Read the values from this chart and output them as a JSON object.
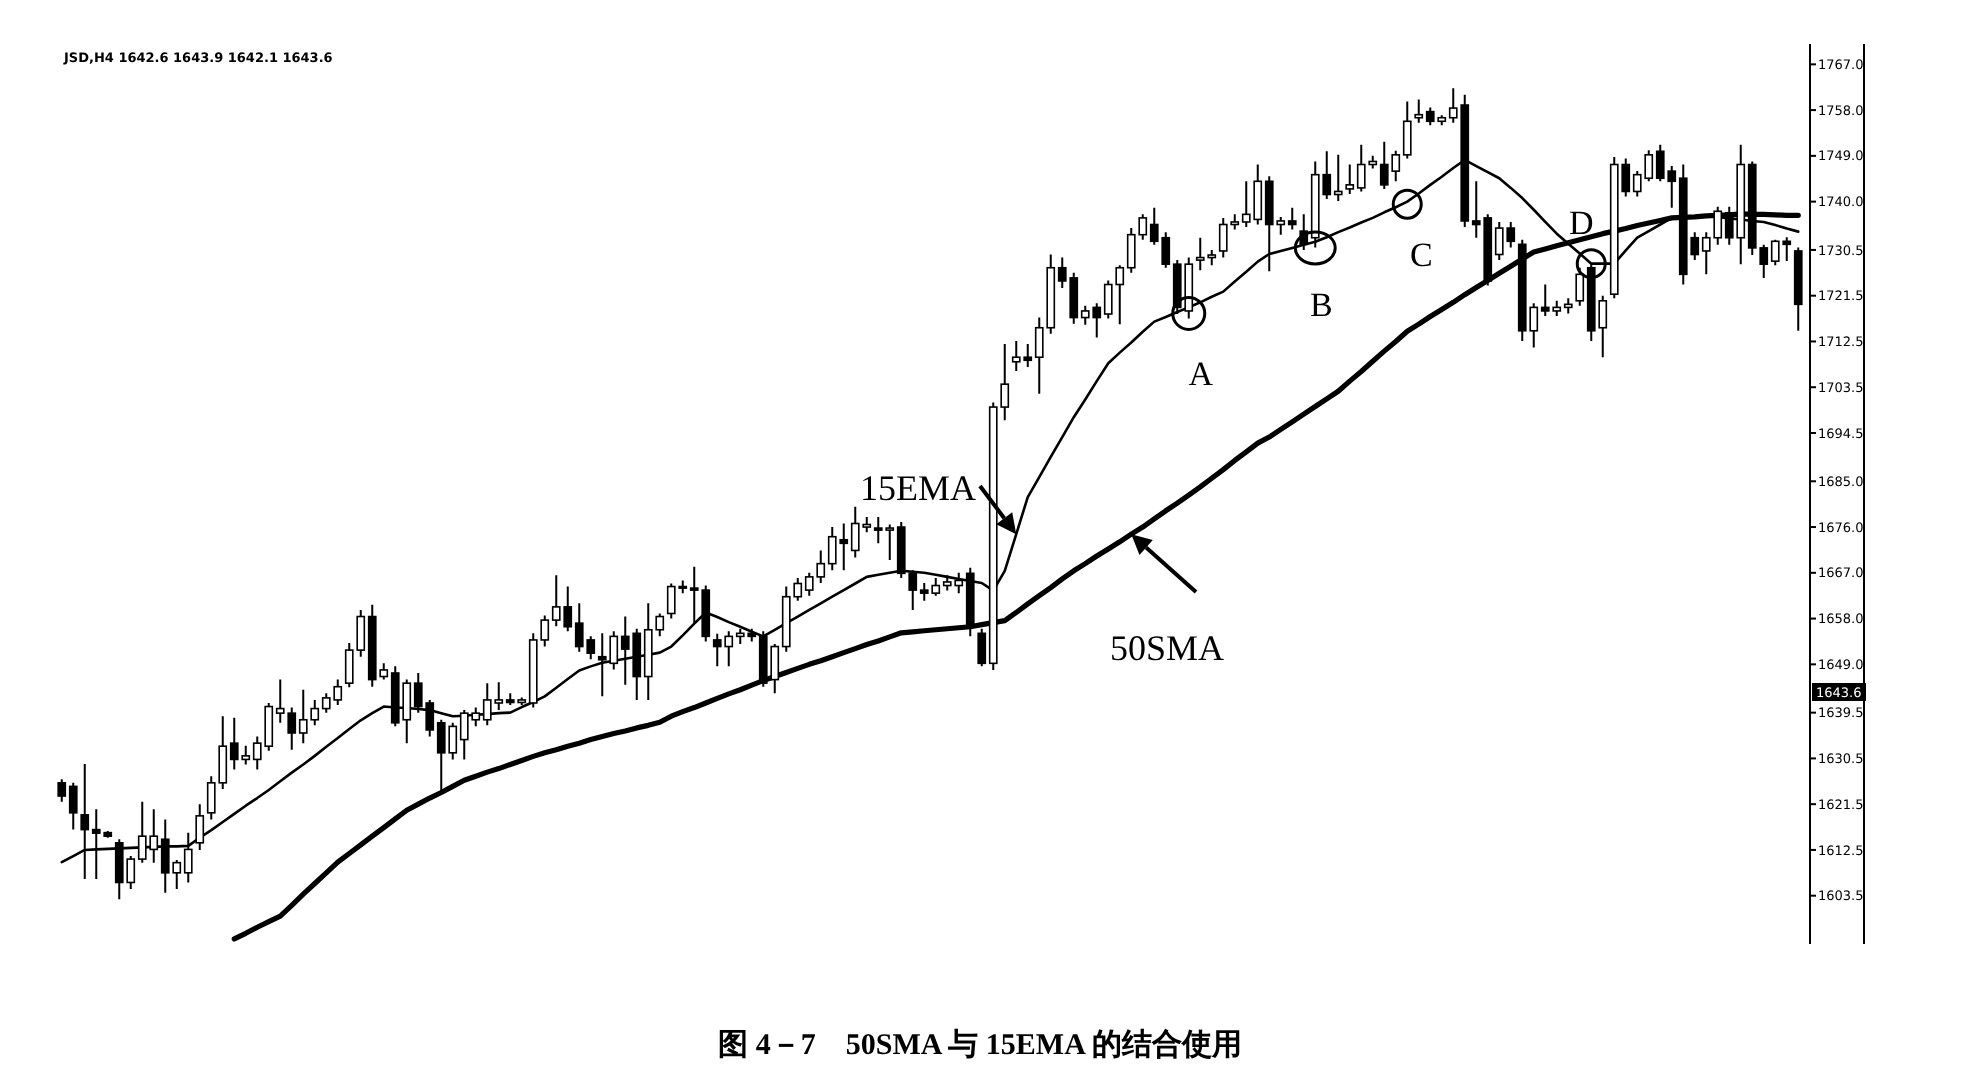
{
  "chart_data": {
    "type": "candlestick",
    "title": "图 4－7　50SMA 与 15EMA 的结合使用",
    "categories": [
      null,
      null,
      null,
      null,
      null,
      null,
      null,
      null,
      null,
      null,
      null,
      null,
      null,
      null,
      null,
      null,
      null,
      null,
      null,
      null,
      null,
      null,
      null,
      null,
      null,
      null,
      null,
      null,
      null,
      null,
      null,
      null,
      null,
      null,
      null,
      null,
      null,
      null,
      null,
      null,
      null,
      null,
      null,
      null,
      null,
      null,
      null,
      null,
      null,
      null,
      null,
      null,
      null,
      null,
      null,
      null,
      null,
      null,
      null,
      null,
      null,
      null,
      null,
      null,
      null,
      null,
      null,
      null,
      null,
      null,
      null,
      null,
      null,
      null,
      null,
      null,
      null,
      null,
      null,
      null,
      null,
      null,
      null,
      null,
      null,
      null,
      null,
      null,
      null,
      null,
      null,
      null,
      null,
      null,
      null,
      null,
      null,
      null,
      null,
      null,
      null,
      null,
      null,
      null,
      null,
      null,
      null,
      null,
      null,
      null,
      null,
      null,
      null,
      null,
      null,
      null,
      null,
      null,
      null,
      null,
      null,
      null,
      null,
      null,
      null,
      null,
      null,
      null,
      null,
      null,
      null,
      null,
      null,
      null,
      null,
      null,
      null,
      null,
      null,
      null,
      null,
      null,
      null,
      null,
      null,
      null,
      null,
      null,
      null,
      null,
      null,
      null
    ],
    "ohlc": [
      [
        1625.7,
        1626.4,
        1622.0,
        1623.1
      ],
      [
        1625.0,
        1625.7,
        1616.5,
        1619.8
      ],
      [
        1619.4,
        1629.4,
        1606.8,
        1616.5
      ],
      [
        1616.5,
        1620.5,
        1606.8,
        1615.8
      ],
      [
        1615.9,
        1616.2,
        1614.9,
        1615.2
      ],
      [
        1613.9,
        1614.6,
        1602.8,
        1606.1
      ],
      [
        1606.1,
        1611.3,
        1604.8,
        1610.7
      ],
      [
        1610.7,
        1622.0,
        1610.0,
        1615.2
      ],
      [
        1612.6,
        1620.5,
        1610.0,
        1615.2
      ],
      [
        1614.6,
        1618.5,
        1604.1,
        1608.0
      ],
      [
        1608.0,
        1610.5,
        1604.8,
        1610.0
      ],
      [
        1608.0,
        1615.9,
        1606.1,
        1612.6
      ],
      [
        1613.9,
        1621.5,
        1612.5,
        1619.2
      ],
      [
        1619.8,
        1627.0,
        1618.5,
        1625.7
      ],
      [
        1625.7,
        1638.8,
        1624.5,
        1632.9
      ],
      [
        1633.5,
        1638.5,
        1628.3,
        1630.3
      ],
      [
        1630.3,
        1633.0,
        1629.3,
        1631.0
      ],
      [
        1630.3,
        1634.8,
        1628.3,
        1633.5
      ],
      [
        1632.9,
        1641.4,
        1632.0,
        1640.7
      ],
      [
        1639.4,
        1646.0,
        1637.5,
        1640.3
      ],
      [
        1639.4,
        1640.5,
        1632.2,
        1635.5
      ],
      [
        1635.5,
        1644.0,
        1633.5,
        1638.1
      ],
      [
        1638.1,
        1642.0,
        1637.0,
        1640.3
      ],
      [
        1640.3,
        1643.3,
        1639.5,
        1642.4
      ],
      [
        1642.0,
        1646.0,
        1641.0,
        1644.6
      ],
      [
        1645.3,
        1653.2,
        1644.5,
        1651.8
      ],
      [
        1651.8,
        1659.7,
        1650.5,
        1658.4
      ],
      [
        1658.4,
        1660.7,
        1644.6,
        1646.0
      ],
      [
        1646.6,
        1649.2,
        1646.0,
        1647.9
      ],
      [
        1647.3,
        1648.6,
        1636.8,
        1637.5
      ],
      [
        1638.1,
        1646.0,
        1633.5,
        1645.3
      ],
      [
        1645.3,
        1647.3,
        1639.5,
        1640.7
      ],
      [
        1641.4,
        1642.0,
        1634.8,
        1636.1
      ],
      [
        1637.5,
        1638.1,
        1623.7,
        1631.6
      ],
      [
        1631.6,
        1637.5,
        1630.3,
        1636.8
      ],
      [
        1634.2,
        1640.0,
        1630.3,
        1639.4
      ],
      [
        1638.1,
        1640.5,
        1636.8,
        1639.4
      ],
      [
        1638.1,
        1645.3,
        1637.0,
        1642.0
      ],
      [
        1641.4,
        1645.5,
        1640.0,
        1642.0
      ],
      [
        1642.0,
        1643.3,
        1641.0,
        1641.5
      ],
      [
        1641.5,
        1642.5,
        1641.0,
        1642.0
      ],
      [
        1641.4,
        1655.1,
        1640.5,
        1653.8
      ],
      [
        1653.8,
        1658.6,
        1652.5,
        1657.7
      ],
      [
        1657.7,
        1666.5,
        1656.5,
        1660.3
      ],
      [
        1660.3,
        1664.3,
        1655.5,
        1656.4
      ],
      [
        1657.1,
        1661.0,
        1651.5,
        1652.5
      ],
      [
        1653.8,
        1654.5,
        1650.0,
        1651.2
      ],
      [
        1650.5,
        1655.1,
        1642.7,
        1649.9
      ],
      [
        1649.2,
        1655.5,
        1648.0,
        1654.5
      ],
      [
        1654.5,
        1658.4,
        1645.0,
        1652.0
      ],
      [
        1655.1,
        1656.0,
        1642.0,
        1646.6
      ],
      [
        1646.6,
        1661.0,
        1642.0,
        1655.8
      ],
      [
        1655.8,
        1659.0,
        1654.5,
        1658.4
      ],
      [
        1659.0,
        1664.9,
        1658.0,
        1664.3
      ],
      [
        1664.3,
        1665.5,
        1663.0,
        1664.0
      ],
      [
        1664.0,
        1668.2,
        1657.1,
        1663.6
      ],
      [
        1663.6,
        1664.5,
        1653.5,
        1654.5
      ],
      [
        1653.8,
        1655.0,
        1648.6,
        1652.5
      ],
      [
        1652.5,
        1655.5,
        1648.6,
        1654.5
      ],
      [
        1654.5,
        1656.0,
        1653.0,
        1655.1
      ],
      [
        1655.1,
        1656.0,
        1653.5,
        1654.5
      ],
      [
        1654.5,
        1655.5,
        1644.6,
        1645.3
      ],
      [
        1646.0,
        1653.0,
        1643.3,
        1652.5
      ],
      [
        1652.5,
        1664.3,
        1651.5,
        1662.3
      ],
      [
        1662.3,
        1666.0,
        1661.5,
        1664.9
      ],
      [
        1663.6,
        1667.0,
        1662.5,
        1666.2
      ],
      [
        1666.2,
        1671.4,
        1665.0,
        1668.8
      ],
      [
        1668.8,
        1676.0,
        1667.5,
        1674.1
      ],
      [
        1673.5,
        1676.7,
        1667.5,
        1672.8
      ],
      [
        1671.4,
        1680.0,
        1670.0,
        1676.7
      ],
      [
        1676.0,
        1678.0,
        1675.0,
        1676.5
      ],
      [
        1675.8,
        1678.0,
        1672.8,
        1675.4
      ],
      [
        1675.4,
        1676.5,
        1669.5,
        1675.8
      ],
      [
        1676.0,
        1677.0,
        1666.0,
        1666.9
      ],
      [
        1666.9,
        1667.5,
        1659.7,
        1663.6
      ],
      [
        1663.6,
        1665.0,
        1661.5,
        1663.0
      ],
      [
        1663.0,
        1666.0,
        1662.5,
        1664.5
      ],
      [
        1664.5,
        1666.5,
        1663.5,
        1665.2
      ],
      [
        1664.5,
        1667.0,
        1663.0,
        1665.5
      ],
      [
        1666.9,
        1668.0,
        1654.5,
        1656.4
      ],
      [
        1655.1,
        1656.0,
        1648.6,
        1649.2
      ],
      [
        1649.2,
        1700.5,
        1647.9,
        1699.6
      ],
      [
        1699.6,
        1712.0,
        1697.0,
        1704.1
      ],
      [
        1708.5,
        1712.6,
        1706.7,
        1709.4
      ],
      [
        1709.4,
        1712.0,
        1707.5,
        1708.8
      ],
      [
        1709.4,
        1717.2,
        1702.2,
        1715.2
      ],
      [
        1715.2,
        1729.6,
        1714.0,
        1727.0
      ],
      [
        1727.0,
        1729.0,
        1723.0,
        1724.4
      ],
      [
        1725.0,
        1726.0,
        1716.0,
        1717.2
      ],
      [
        1717.2,
        1719.5,
        1715.8,
        1718.5
      ],
      [
        1719.2,
        1720.0,
        1713.3,
        1717.2
      ],
      [
        1717.9,
        1724.5,
        1717.0,
        1723.7
      ],
      [
        1723.7,
        1727.5,
        1715.9,
        1727.0
      ],
      [
        1727.0,
        1734.8,
        1726.0,
        1733.5
      ],
      [
        1733.5,
        1737.5,
        1732.5,
        1736.8
      ],
      [
        1735.5,
        1738.8,
        1731.5,
        1732.2
      ],
      [
        1732.9,
        1734.0,
        1727.0,
        1727.7
      ],
      [
        1727.7,
        1728.5,
        1717.9,
        1719.2
      ],
      [
        1718.5,
        1729.0,
        1717.0,
        1727.7
      ],
      [
        1728.5,
        1732.9,
        1726.5,
        1729.0
      ],
      [
        1729.0,
        1730.5,
        1727.5,
        1729.5
      ],
      [
        1730.3,
        1736.8,
        1729.0,
        1735.5
      ],
      [
        1735.5,
        1737.5,
        1734.5,
        1736.0
      ],
      [
        1736.0,
        1744.0,
        1735.0,
        1737.5
      ],
      [
        1736.5,
        1747.3,
        1735.5,
        1744.0
      ],
      [
        1744.0,
        1745.0,
        1726.3,
        1735.5
      ],
      [
        1735.5,
        1737.0,
        1733.5,
        1736.2
      ],
      [
        1736.2,
        1738.8,
        1734.5,
        1735.5
      ],
      [
        1734.2,
        1737.5,
        1730.5,
        1731.6
      ],
      [
        1732.9,
        1747.9,
        1731.0,
        1745.3
      ],
      [
        1745.3,
        1749.9,
        1740.5,
        1741.4
      ],
      [
        1741.4,
        1749.2,
        1740.1,
        1742.0
      ],
      [
        1742.5,
        1747.3,
        1741.5,
        1743.3
      ],
      [
        1742.7,
        1751.2,
        1742.0,
        1747.3
      ],
      [
        1747.3,
        1749.0,
        1746.5,
        1747.9
      ],
      [
        1747.3,
        1751.8,
        1742.5,
        1743.3
      ],
      [
        1746.0,
        1750.0,
        1744.0,
        1749.2
      ],
      [
        1749.2,
        1759.7,
        1748.5,
        1755.8
      ],
      [
        1756.5,
        1760.1,
        1755.5,
        1757.1
      ],
      [
        1757.7,
        1758.5,
        1755.0,
        1755.8
      ],
      [
        1755.8,
        1757.0,
        1755.0,
        1756.5
      ],
      [
        1756.5,
        1762.3,
        1755.5,
        1758.4
      ],
      [
        1759.0,
        1761.0,
        1735.0,
        1736.2
      ],
      [
        1736.2,
        1744.0,
        1732.9,
        1735.5
      ],
      [
        1736.8,
        1737.5,
        1723.5,
        1724.4
      ],
      [
        1729.6,
        1736.0,
        1728.5,
        1734.8
      ],
      [
        1734.8,
        1736.0,
        1731.0,
        1732.2
      ],
      [
        1731.6,
        1732.5,
        1712.6,
        1714.6
      ],
      [
        1714.6,
        1720.0,
        1711.3,
        1719.2
      ],
      [
        1719.2,
        1723.7,
        1717.5,
        1718.5
      ],
      [
        1718.5,
        1720.5,
        1717.5,
        1719.2
      ],
      [
        1719.2,
        1721.0,
        1718.0,
        1719.8
      ],
      [
        1720.5,
        1727.0,
        1719.5,
        1725.7
      ],
      [
        1727.0,
        1728.0,
        1712.6,
        1714.6
      ],
      [
        1715.2,
        1721.5,
        1709.4,
        1720.5
      ],
      [
        1721.8,
        1748.8,
        1721.0,
        1747.3
      ],
      [
        1747.3,
        1748.5,
        1741.0,
        1742.0
      ],
      [
        1742.0,
        1746.0,
        1741.0,
        1745.3
      ],
      [
        1744.6,
        1750.1,
        1744.0,
        1749.2
      ],
      [
        1749.9,
        1751.2,
        1744.0,
        1744.6
      ],
      [
        1746.0,
        1747.0,
        1738.8,
        1744.0
      ],
      [
        1744.6,
        1747.3,
        1723.7,
        1725.7
      ],
      [
        1732.9,
        1734.0,
        1728.5,
        1729.6
      ],
      [
        1730.3,
        1734.0,
        1725.7,
        1732.9
      ],
      [
        1732.9,
        1739.0,
        1731.5,
        1738.1
      ],
      [
        1737.8,
        1739.0,
        1731.5,
        1732.9
      ],
      [
        1732.9,
        1751.2,
        1727.7,
        1747.3
      ],
      [
        1747.3,
        1747.9,
        1729.5,
        1730.9
      ],
      [
        1730.9,
        1731.5,
        1725.0,
        1727.7
      ],
      [
        1728.3,
        1732.5,
        1727.5,
        1732.2
      ],
      [
        1732.2,
        1733.0,
        1728.3,
        1731.6
      ],
      [
        1730.3,
        1731.0,
        1714.6,
        1719.8
      ]
    ],
    "series": [
      {
        "name": "15EMA",
        "type": "line",
        "color": "#000000",
        "values": [
          1610.1,
          1611.3,
          1612.5,
          1612.6,
          1612.7,
          1612.8,
          1612.9,
          1613.0,
          1613.1,
          1613.2,
          1613.2,
          1613.3,
          1614.9,
          1616.4,
          1618.0,
          1619.6,
          1621.2,
          1622.7,
          1624.3,
          1626.0,
          1627.7,
          1629.3,
          1631.0,
          1632.8,
          1634.5,
          1636.3,
          1638.0,
          1639.4,
          1640.7,
          1640.5,
          1640.4,
          1640.2,
          1640.0,
          1639.4,
          1638.8,
          1638.9,
          1639.1,
          1639.2,
          1639.4,
          1639.5,
          1640.6,
          1641.6,
          1642.7,
          1644.4,
          1646.1,
          1647.8,
          1648.6,
          1649.3,
          1649.7,
          1650.1,
          1650.5,
          1650.9,
          1651.3,
          1652.5,
          1654.7,
          1657.0,
          1659.2,
          1658.3,
          1657.3,
          1656.4,
          1655.4,
          1654.5,
          1655.8,
          1657.1,
          1658.4,
          1659.7,
          1661.0,
          1662.3,
          1663.6,
          1664.9,
          1666.2,
          1666.6,
          1667.0,
          1667.4,
          1667.2,
          1667.0,
          1666.6,
          1666.2,
          1665.8,
          1665.4,
          1665.0,
          1663.5,
          1667.4,
          1674.6,
          1681.9,
          1685.8,
          1689.8,
          1693.7,
          1697.6,
          1701.1,
          1704.7,
          1708.2,
          1710.3,
          1712.3,
          1714.4,
          1716.4,
          1717.3,
          1718.3,
          1719.2,
          1720.2,
          1721.3,
          1722.3,
          1724.3,
          1726.2,
          1728.2,
          1729.7,
          1730.3,
          1730.9,
          1731.5,
          1732.1,
          1733.0,
          1734.0,
          1734.9,
          1735.9,
          1736.8,
          1737.9,
          1738.9,
          1740.0,
          1741.6,
          1743.3,
          1744.9,
          1746.6,
          1748.2,
          1747.0,
          1745.8,
          1744.6,
          1742.7,
          1740.7,
          1738.4,
          1736.0,
          1733.7,
          1731.7,
          1729.8,
          1727.8,
          1727.8,
          1727.8,
          1730.4,
          1732.9,
          1734.2,
          1735.5,
          1736.8,
          1736.9,
          1737.1,
          1737.2,
          1737.0,
          1736.7,
          1736.5,
          1736.2,
          1736.0,
          1735.4,
          1734.7,
          1734.1
        ]
      },
      {
        "name": "50SMA",
        "type": "line",
        "color": "#000000",
        "values": [
          null,
          null,
          null,
          null,
          null,
          null,
          null,
          null,
          null,
          null,
          null,
          null,
          null,
          null,
          null,
          1595.0,
          1596.1,
          1597.3,
          1598.4,
          1599.5,
          1601.6,
          1603.8,
          1605.9,
          1608.0,
          1610.1,
          1611.8,
          1613.5,
          1615.2,
          1616.9,
          1618.6,
          1620.3,
          1621.5,
          1622.7,
          1623.8,
          1625.0,
          1626.2,
          1627.0,
          1627.8,
          1628.5,
          1629.3,
          1630.1,
          1630.9,
          1631.6,
          1632.2,
          1632.9,
          1633.5,
          1634.2,
          1634.8,
          1635.4,
          1635.9,
          1636.5,
          1637.0,
          1637.6,
          1638.8,
          1639.7,
          1640.5,
          1641.4,
          1642.3,
          1643.2,
          1644.0,
          1644.9,
          1645.8,
          1646.6,
          1647.4,
          1648.2,
          1649.0,
          1649.7,
          1650.5,
          1651.3,
          1652.1,
          1652.9,
          1653.6,
          1654.4,
          1655.2,
          1655.4,
          1655.6,
          1655.8,
          1656.0,
          1656.2,
          1656.4,
          1656.8,
          1657.2,
          1657.6,
          1659.2,
          1660.9,
          1662.5,
          1664.1,
          1665.8,
          1667.4,
          1668.8,
          1670.3,
          1671.7,
          1673.1,
          1674.6,
          1676.0,
          1677.6,
          1679.2,
          1680.7,
          1682.3,
          1683.9,
          1685.6,
          1687.3,
          1689.1,
          1690.8,
          1692.5,
          1693.7,
          1695.2,
          1696.7,
          1698.2,
          1699.7,
          1701.2,
          1702.7,
          1704.7,
          1706.6,
          1708.6,
          1710.6,
          1712.5,
          1714.5,
          1715.9,
          1717.4,
          1718.8,
          1720.2,
          1721.7,
          1723.1,
          1724.5,
          1725.9,
          1727.3,
          1728.7,
          1730.1,
          1730.7,
          1731.3,
          1731.9,
          1732.5,
          1733.1,
          1733.7,
          1734.2,
          1734.7,
          1735.3,
          1735.8,
          1736.3,
          1736.8,
          1736.9,
          1737.0,
          1737.2,
          1737.3,
          1737.4,
          1737.6,
          1737.5,
          1737.5,
          1737.4,
          1737.3,
          1737.3
        ]
      }
    ],
    "ylim": [
      1594,
      1771
    ],
    "yticks": [
      {
        "value": 1767,
        "label": "1767.0"
      },
      {
        "value": 1758,
        "label": "1758.0"
      },
      {
        "value": 1749,
        "label": "1749.0"
      },
      {
        "value": 1740,
        "label": "1740.0"
      },
      {
        "value": 1730.5,
        "label": "1730.5"
      },
      {
        "value": 1721.5,
        "label": "1721.5"
      },
      {
        "value": 1712.5,
        "label": "1712.5"
      },
      {
        "value": 1703.5,
        "label": "1703.5"
      },
      {
        "value": 1694.5,
        "label": "1694.5"
      },
      {
        "value": 1685,
        "label": "1685.0"
      },
      {
        "value": 1676,
        "label": "1676.0"
      },
      {
        "value": 1667,
        "label": "1667.0"
      },
      {
        "value": 1658,
        "label": "1658.0"
      },
      {
        "value": 1649,
        "label": "1649.0"
      },
      {
        "value": 1639.5,
        "label": "1639.5"
      },
      {
        "value": 1630.5,
        "label": "1630.5"
      },
      {
        "value": 1621.5,
        "label": "1621.5"
      },
      {
        "value": 1612.5,
        "label": "1612.5"
      },
      {
        "value": 1603.5,
        "label": "1603.5"
      }
    ],
    "tick_labels": "y",
    "annotations": [
      "JSD,H4  1642.6 1643.9 1642.1 1643.6",
      {
        "text": "A",
        "y": 1718.0
      },
      {
        "text": "B",
        "y": 1730.9
      },
      {
        "text": "C",
        "y": 1739.5
      },
      {
        "text": "D",
        "y": 1727.8
      },
      "1643.6"
    ]
  }
}
